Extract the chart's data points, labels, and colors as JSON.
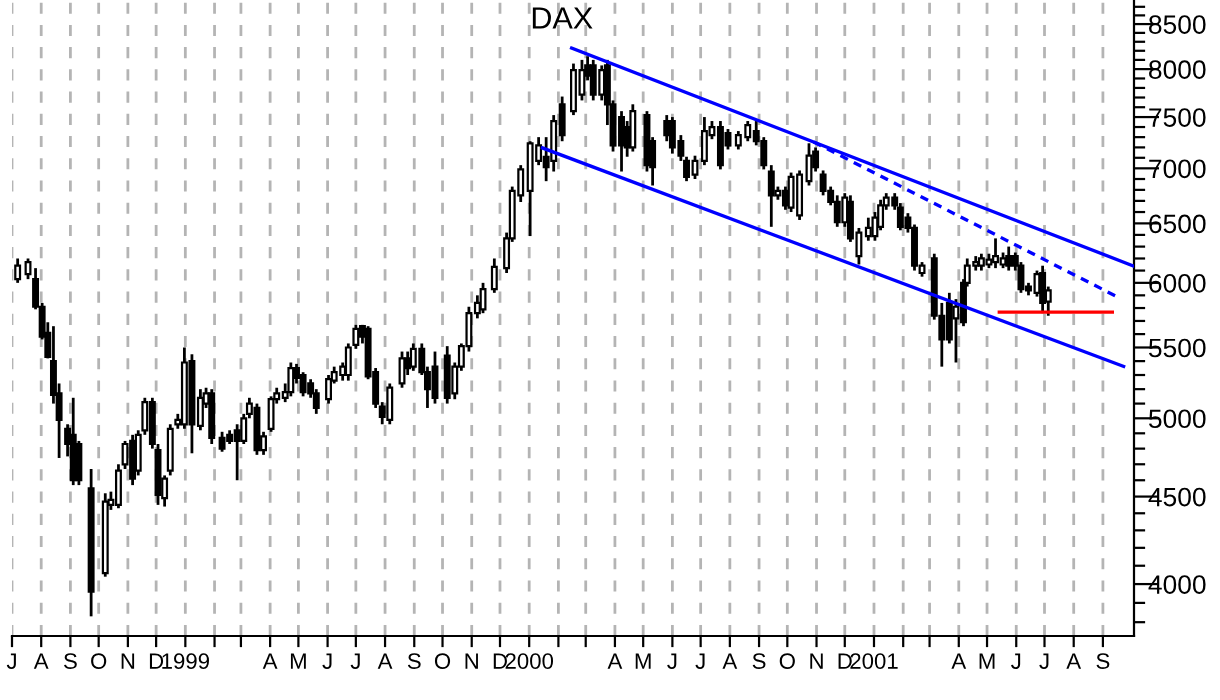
{
  "chart_data": {
    "type": "candlestick",
    "title": "DAX",
    "log": "y",
    "grid": "x",
    "legend": false,
    "xlim": [
      "1998-07-01",
      "2001-10-04"
    ],
    "ylim": [
      3730,
      8780
    ],
    "xticks": [
      {
        "value": "1998-07-01",
        "label": "J"
      },
      {
        "value": "1998-08-01",
        "label": "A"
      },
      {
        "value": "1998-09-01",
        "label": "S"
      },
      {
        "value": "1998-10-01",
        "label": "O"
      },
      {
        "value": "1998-11-01",
        "label": "N"
      },
      {
        "value": "1998-12-01",
        "label": "D"
      },
      {
        "value": "1999-01-01",
        "label": "1999"
      },
      {
        "value": "1999-02-01",
        "label": null
      },
      {
        "value": "1999-03-01",
        "label": null
      },
      {
        "value": "1999-04-01",
        "label": "A"
      },
      {
        "value": "1999-05-01",
        "label": "M"
      },
      {
        "value": "1999-06-01",
        "label": "J"
      },
      {
        "value": "1999-07-01",
        "label": "J"
      },
      {
        "value": "1999-08-01",
        "label": "A"
      },
      {
        "value": "1999-09-01",
        "label": "S"
      },
      {
        "value": "1999-10-01",
        "label": "O"
      },
      {
        "value": "1999-11-01",
        "label": "N"
      },
      {
        "value": "1999-12-01",
        "label": "D"
      },
      {
        "value": "2000-01-01",
        "label": "2000"
      },
      {
        "value": "2000-02-01",
        "label": null
      },
      {
        "value": "2000-03-01",
        "label": null
      },
      {
        "value": "2000-04-01",
        "label": "A"
      },
      {
        "value": "2000-05-01",
        "label": "M"
      },
      {
        "value": "2000-06-01",
        "label": "J"
      },
      {
        "value": "2000-07-01",
        "label": "J"
      },
      {
        "value": "2000-08-01",
        "label": "A"
      },
      {
        "value": "2000-09-01",
        "label": "S"
      },
      {
        "value": "2000-10-01",
        "label": "O"
      },
      {
        "value": "2000-11-01",
        "label": "N"
      },
      {
        "value": "2000-12-01",
        "label": "D"
      },
      {
        "value": "2001-01-01",
        "label": "2001"
      },
      {
        "value": "2001-02-01",
        "label": null
      },
      {
        "value": "2001-03-01",
        "label": null
      },
      {
        "value": "2001-04-01",
        "label": "A"
      },
      {
        "value": "2001-05-01",
        "label": "M"
      },
      {
        "value": "2001-06-01",
        "label": "J"
      },
      {
        "value": "2001-07-01",
        "label": "J"
      },
      {
        "value": "2001-08-01",
        "label": "A"
      },
      {
        "value": "2001-09-01",
        "label": "S"
      }
    ],
    "yticks": [
      {
        "value": 3800,
        "label": null
      },
      {
        "value": 3900,
        "label": null
      },
      4000,
      {
        "value": 4100,
        "label": null
      },
      {
        "value": 4200,
        "label": null
      },
      {
        "value": 4300,
        "label": null
      },
      {
        "value": 4400,
        "label": null
      },
      4500,
      {
        "value": 4600,
        "label": null
      },
      {
        "value": 4700,
        "label": null
      },
      {
        "value": 4800,
        "label": null
      },
      {
        "value": 4900,
        "label": null
      },
      5000,
      {
        "value": 5100,
        "label": null
      },
      {
        "value": 5200,
        "label": null
      },
      {
        "value": 5300,
        "label": null
      },
      {
        "value": 5400,
        "label": null
      },
      5500,
      {
        "value": 5600,
        "label": null
      },
      {
        "value": 5700,
        "label": null
      },
      {
        "value": 5800,
        "label": null
      },
      {
        "value": 5900,
        "label": null
      },
      6000,
      {
        "value": 6100,
        "label": null
      },
      {
        "value": 6200,
        "label": null
      },
      {
        "value": 6300,
        "label": null
      },
      {
        "value": 6400,
        "label": null
      },
      6500,
      {
        "value": 6600,
        "label": null
      },
      {
        "value": 6700,
        "label": null
      },
      {
        "value": 6800,
        "label": null
      },
      {
        "value": 6900,
        "label": null
      },
      7000,
      {
        "value": 7100,
        "label": null
      },
      {
        "value": 7200,
        "label": null
      },
      {
        "value": 7300,
        "label": null
      },
      {
        "value": 7400,
        "label": null
      },
      7500,
      {
        "value": 7600,
        "label": null
      },
      {
        "value": 7700,
        "label": null
      },
      {
        "value": 7800,
        "label": null
      },
      {
        "value": 7900,
        "label": null
      },
      8000,
      {
        "value": 8100,
        "label": null
      },
      {
        "value": 8200,
        "label": null
      },
      {
        "value": 8300,
        "label": null
      },
      {
        "value": 8400,
        "label": null
      },
      8500,
      {
        "value": 8600,
        "label": null
      },
      {
        "value": 8700,
        "label": null
      }
    ],
    "x": [
      "1998-07-07",
      "1998-07-18",
      "1998-07-26",
      "1998-08-02",
      "1998-08-08",
      "1998-08-14",
      "1998-08-20",
      "1998-08-29",
      "1998-09-04",
      "1998-09-10",
      "1998-09-23",
      "1998-10-08",
      "1998-10-14",
      "1998-10-22",
      "1998-10-29",
      "1998-11-06",
      "1998-11-12",
      "1998-11-19",
      "1998-11-27",
      "1998-12-03",
      "1998-12-10",
      "1998-12-16",
      "1998-12-24",
      "1998-12-31",
      "1999-01-08",
      "1999-01-17",
      "1999-01-23",
      "1999-01-29",
      "1999-02-09",
      "1999-02-17",
      "1999-02-25",
      "1999-03-04",
      "1999-03-10",
      "1999-03-18",
      "1999-03-25",
      "1999-04-02",
      "1999-04-08",
      "1999-04-17",
      "1999-04-23",
      "1999-04-29",
      "1999-05-06",
      "1999-05-14",
      "1999-05-20",
      "1999-06-02",
      "1999-06-08",
      "1999-06-17",
      "1999-06-23",
      "1999-07-01",
      "1999-07-08",
      "1999-07-14",
      "1999-07-22",
      "1999-07-29",
      "1999-08-06",
      "1999-08-19",
      "1999-08-25",
      "1999-08-31",
      "1999-09-09",
      "1999-09-15",
      "1999-09-23",
      "1999-10-06",
      "1999-10-14",
      "1999-10-21",
      "1999-10-29",
      "1999-11-07",
      "1999-11-13",
      "1999-11-25",
      "1999-12-08",
      "1999-12-14",
      "1999-12-23",
      "2000-01-02",
      "2000-01-11",
      "2000-01-19",
      "2000-01-27",
      "2000-02-05",
      "2000-02-17",
      "2000-02-26",
      "2000-03-03",
      "2000-03-09",
      "2000-03-18",
      "2000-03-24",
      "2000-03-30",
      "2000-04-08",
      "2000-04-14",
      "2000-04-20",
      "2000-05-05",
      "2000-05-11",
      "2000-05-26",
      "2000-06-01",
      "2000-06-10",
      "2000-06-16",
      "2000-06-25",
      "2000-07-05",
      "2000-07-13",
      "2000-07-22",
      "2000-07-30",
      "2000-08-10",
      "2000-08-20",
      "2000-08-29",
      "2000-09-06",
      "2000-09-14",
      "2000-09-21",
      "2000-09-29",
      "2000-10-05",
      "2000-10-14",
      "2000-10-24",
      "2000-10-31",
      "2000-11-08",
      "2000-11-16",
      "2000-11-23",
      "2000-12-01",
      "2000-12-07",
      "2000-12-16",
      "2000-12-26",
      "2001-01-02",
      "2001-01-08",
      "2001-01-14",
      "2001-01-23",
      "2001-01-29",
      "2001-02-06",
      "2001-02-13",
      "2001-02-21",
      "2001-03-06",
      "2001-03-14",
      "2001-03-22",
      "2001-03-29",
      "2001-04-06",
      "2001-04-10",
      "2001-04-19",
      "2001-04-25",
      "2001-05-03",
      "2001-05-10",
      "2001-05-18",
      "2001-05-24",
      "2001-05-31",
      "2001-06-06",
      "2001-06-14",
      "2001-06-23",
      "2001-06-29",
      "2001-07-05"
    ],
    "ohlc": [
      [
        6030,
        6200,
        6000,
        6140
      ],
      [
        6070,
        6200,
        6030,
        6170
      ],
      [
        6030,
        6120,
        5790,
        5810
      ],
      [
        5810,
        5840,
        5560,
        5580
      ],
      [
        5610,
        5690,
        5420,
        5430
      ],
      [
        5400,
        5660,
        5100,
        5160
      ],
      [
        5170,
        5240,
        4740,
        4990
      ],
      [
        4930,
        4960,
        4750,
        4830
      ],
      [
        4890,
        5140,
        4570,
        4600
      ],
      [
        4830,
        4850,
        4570,
        4600
      ],
      [
        4550,
        4670,
        3830,
        3960
      ],
      [
        4060,
        4520,
        4040,
        4470
      ],
      [
        4450,
        4530,
        4420,
        4480
      ],
      [
        4450,
        4700,
        4430,
        4660
      ],
      [
        4700,
        4850,
        4670,
        4830
      ],
      [
        4850,
        4890,
        4570,
        4610
      ],
      [
        4660,
        4920,
        4630,
        4890
      ],
      [
        4920,
        5140,
        4890,
        5110
      ],
      [
        5110,
        5140,
        4800,
        4830
      ],
      [
        4790,
        4830,
        4450,
        4510
      ],
      [
        4490,
        4630,
        4440,
        4610
      ],
      [
        4660,
        4960,
        4630,
        4930
      ],
      [
        4960,
        5030,
        4930,
        4990
      ],
      [
        4960,
        5500,
        4930,
        5390
      ],
      [
        5400,
        5450,
        4770,
        4960
      ],
      [
        4950,
        5200,
        4920,
        5140
      ],
      [
        5100,
        5210,
        5070,
        5170
      ],
      [
        5170,
        5200,
        4830,
        4870
      ],
      [
        4870,
        4910,
        4780,
        4800
      ],
      [
        4890,
        4920,
        4830,
        4850
      ],
      [
        4920,
        4960,
        4600,
        4850
      ],
      [
        4850,
        5030,
        4830,
        5000
      ],
      [
        5030,
        5140,
        5000,
        5100
      ],
      [
        5070,
        5100,
        4760,
        4790
      ],
      [
        4790,
        4910,
        4760,
        4880
      ],
      [
        4930,
        5150,
        4910,
        5130
      ],
      [
        5130,
        5210,
        5100,
        5170
      ],
      [
        5140,
        5240,
        5110,
        5180
      ],
      [
        5180,
        5390,
        5150,
        5350
      ],
      [
        5350,
        5380,
        5240,
        5280
      ],
      [
        5300,
        5320,
        5150,
        5180
      ],
      [
        5240,
        5270,
        5140,
        5170
      ],
      [
        5170,
        5200,
        5030,
        5070
      ],
      [
        5130,
        5300,
        5100,
        5270
      ],
      [
        5260,
        5360,
        5240,
        5320
      ],
      [
        5300,
        5390,
        5260,
        5360
      ],
      [
        5300,
        5530,
        5260,
        5500
      ],
      [
        5520,
        5670,
        5490,
        5640
      ],
      [
        5660,
        5670,
        5530,
        5580
      ],
      [
        5640,
        5660,
        5270,
        5290
      ],
      [
        5320,
        5350,
        5070,
        5100
      ],
      [
        5080,
        5110,
        4960,
        5010
      ],
      [
        4990,
        5240,
        4960,
        5210
      ],
      [
        5240,
        5470,
        5210,
        5420
      ],
      [
        5420,
        5470,
        5300,
        5350
      ],
      [
        5360,
        5530,
        5330,
        5490
      ],
      [
        5490,
        5530,
        5300,
        5320
      ],
      [
        5320,
        5360,
        5070,
        5200
      ],
      [
        5360,
        5470,
        5100,
        5140
      ],
      [
        5440,
        5510,
        5100,
        5140
      ],
      [
        5170,
        5390,
        5130,
        5360
      ],
      [
        5360,
        5530,
        5330,
        5510
      ],
      [
        5510,
        5810,
        5470,
        5760
      ],
      [
        5760,
        5900,
        5720,
        5840
      ],
      [
        5790,
        6000,
        5760,
        5950
      ],
      [
        5950,
        6200,
        5920,
        6130
      ],
      [
        6120,
        6420,
        6080,
        6370
      ],
      [
        6370,
        6830,
        6340,
        6790
      ],
      [
        6750,
        7030,
        6690,
        6990
      ],
      [
        6790,
        7260,
        6390,
        7240
      ],
      [
        7070,
        7300,
        7030,
        7220
      ],
      [
        7110,
        7300,
        6880,
        7010
      ],
      [
        7070,
        7520,
        6970,
        7460
      ],
      [
        7630,
        7710,
        7260,
        7320
      ],
      [
        7560,
        8060,
        7520,
        7990
      ],
      [
        7730,
        8100,
        7670,
        7990
      ],
      [
        8040,
        8140,
        7880,
        7930
      ],
      [
        8040,
        8100,
        7670,
        7730
      ],
      [
        7730,
        8040,
        7670,
        7990
      ],
      [
        8040,
        8100,
        7420,
        7630
      ],
      [
        7630,
        7670,
        7160,
        7220
      ],
      [
        7500,
        7560,
        6970,
        7220
      ],
      [
        7400,
        7460,
        7110,
        7200
      ],
      [
        7200,
        7630,
        7160,
        7560
      ],
      [
        7520,
        7560,
        6970,
        7030
      ],
      [
        7260,
        7300,
        6840,
        7010
      ],
      [
        7460,
        7520,
        7260,
        7320
      ],
      [
        7460,
        7500,
        7140,
        7200
      ],
      [
        7260,
        7320,
        7070,
        7120
      ],
      [
        7070,
        7110,
        6880,
        6920
      ],
      [
        6940,
        7120,
        6900,
        7070
      ],
      [
        7070,
        7500,
        7030,
        7360
      ],
      [
        7320,
        7460,
        7280,
        7400
      ],
      [
        7400,
        7460,
        6990,
        7030
      ],
      [
        7340,
        7380,
        7180,
        7220
      ],
      [
        7220,
        7360,
        7180,
        7320
      ],
      [
        7300,
        7460,
        7260,
        7420
      ],
      [
        7360,
        7460,
        7220,
        7260
      ],
      [
        7260,
        7300,
        6990,
        7030
      ],
      [
        6970,
        7030,
        6470,
        6750
      ],
      [
        6750,
        6830,
        6710,
        6790
      ],
      [
        6790,
        6830,
        6620,
        6660
      ],
      [
        6640,
        6960,
        6600,
        6920
      ],
      [
        6570,
        6980,
        6530,
        6940
      ],
      [
        6880,
        7240,
        6840,
        7120
      ],
      [
        7160,
        7200,
        6970,
        7010
      ],
      [
        6940,
        6980,
        6750,
        6790
      ],
      [
        6790,
        6830,
        6660,
        6690
      ],
      [
        6690,
        6750,
        6470,
        6510
      ],
      [
        6510,
        6770,
        6470,
        6730
      ],
      [
        6690,
        6750,
        6340,
        6370
      ],
      [
        6220,
        6460,
        6150,
        6420
      ],
      [
        6390,
        6550,
        6350,
        6460
      ],
      [
        6390,
        6600,
        6350,
        6550
      ],
      [
        6470,
        6710,
        6440,
        6660
      ],
      [
        6660,
        6770,
        6620,
        6730
      ],
      [
        6730,
        6770,
        6620,
        6660
      ],
      [
        6640,
        6680,
        6440,
        6470
      ],
      [
        6550,
        6590,
        6420,
        6460
      ],
      [
        6460,
        6490,
        6100,
        6140
      ],
      [
        6080,
        6170,
        6050,
        6140
      ],
      [
        6200,
        6240,
        5710,
        5740
      ],
      [
        5740,
        5840,
        5360,
        5560
      ],
      [
        5840,
        5920,
        5530,
        5560
      ],
      [
        5720,
        5870,
        5390,
        5810
      ],
      [
        6000,
        6030,
        5660,
        5690
      ],
      [
        6000,
        6200,
        5970,
        6140
      ],
      [
        6140,
        6220,
        6100,
        6170
      ],
      [
        6140,
        6240,
        6100,
        6200
      ],
      [
        6150,
        6240,
        6120,
        6190
      ],
      [
        6170,
        6370,
        6120,
        6220
      ],
      [
        6150,
        6250,
        6120,
        6200
      ],
      [
        6220,
        6300,
        6100,
        6140
      ],
      [
        6220,
        6250,
        6100,
        6140
      ],
      [
        6140,
        6170,
        5920,
        5950
      ],
      [
        5970,
        6000,
        5900,
        5940
      ],
      [
        5920,
        6100,
        5890,
        6070
      ],
      [
        6080,
        6140,
        5760,
        5840
      ],
      [
        5850,
        5970,
        5740,
        5940
      ]
    ],
    "series": [
      {
        "type": "line",
        "color": "#0000ff",
        "line_style": "solid",
        "x": [
          "2000-02-15",
          "2001-10-04"
        ],
        "values": [
          8229,
          6136
        ]
      },
      {
        "type": "line",
        "color": "#0000ff",
        "line_style": "solid",
        "x": [
          "2000-01-15",
          "2001-09-23"
        ],
        "values": [
          7195,
          5362
        ]
      },
      {
        "type": "line",
        "color": "#0000ff",
        "line_style": "dashed",
        "x": [
          "2000-10-29",
          "2001-09-15"
        ],
        "values": [
          7253,
          5893
        ]
      },
      {
        "type": "line",
        "color": "#ff0000",
        "line_style": "solid",
        "x": [
          "2001-05-14",
          "2001-09-11"
        ],
        "values": [
          5768,
          5768
        ]
      }
    ]
  }
}
